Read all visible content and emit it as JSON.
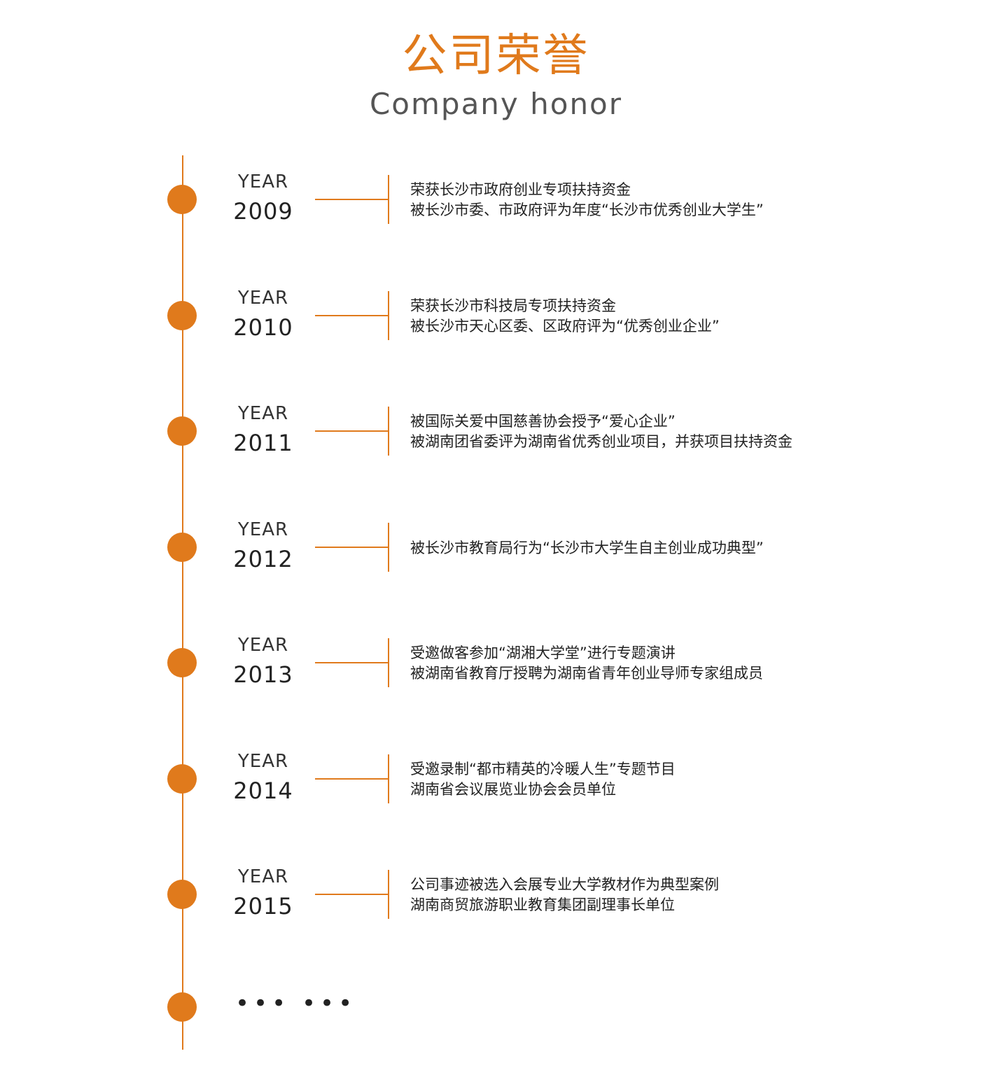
{
  "header": {
    "title_cn": "公司荣誉",
    "title_en": "Company honor"
  },
  "year_prefix": "YEAR",
  "entries": [
    {
      "year": "2009",
      "lines": [
        "荣获长沙市政府创业专项扶持资金",
        "被长沙市委、市政府评为年度“长沙市优秀创业大学生”"
      ]
    },
    {
      "year": "2010",
      "lines": [
        "荣获长沙市科技局专项扶持资金",
        "被长沙市天心区委、区政府评为“优秀创业企业”"
      ]
    },
    {
      "year": "2011",
      "lines": [
        "被国际关爱中国慈善协会授予“爱心企业”",
        "被湖南团省委评为湖南省优秀创业项目，并获项目扶持资金"
      ]
    },
    {
      "year": "2012",
      "lines": [
        "被长沙市教育局行为“长沙市大学生自主创业成功典型”"
      ]
    },
    {
      "year": "2013",
      "lines": [
        "受邀做客参加“湖湘大学堂”进行专题演讲",
        "被湖南省教育厅授聘为湖南省青年创业导师专家组成员"
      ]
    },
    {
      "year": "2014",
      "lines": [
        "受邀录制“都市精英的冷暖人生”专题节目",
        "湖南省会议展览业协会会员单位"
      ]
    },
    {
      "year": "2015",
      "lines": [
        "公司事迹被选入会展专业大学教材作为典型案例",
        "湖南商贸旅游职业教育集团副理事长单位"
      ]
    }
  ],
  "ellipsis": "••• •••",
  "colors": {
    "accent": "#e07a1c",
    "text": "#222222",
    "subtitle": "#555555"
  }
}
